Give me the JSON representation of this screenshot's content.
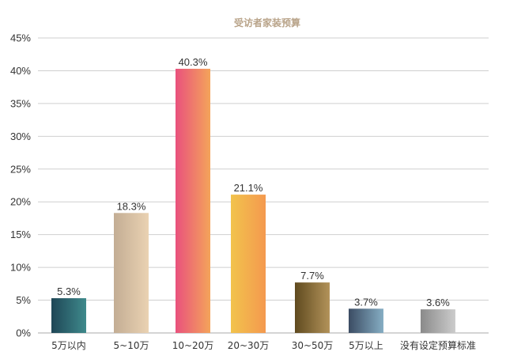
{
  "chart_data": {
    "type": "bar",
    "title": "受访者家装预算",
    "categories": [
      "5万以内",
      "5~10万",
      "10~20万",
      "20~30万",
      "30~50万",
      "5万以上",
      "没有设定预算标准"
    ],
    "values": [
      5.3,
      18.3,
      40.3,
      21.1,
      7.7,
      3.7,
      3.6
    ],
    "value_labels": [
      "5.3%",
      "18.3%",
      "40.3%",
      "21.1%",
      "7.7%",
      "3.7%",
      "3.6%"
    ],
    "yticks": [
      "0%",
      "5%",
      "10%",
      "15%",
      "20%",
      "25%",
      "30%",
      "35%",
      "40%",
      "45%"
    ],
    "ylim": [
      0,
      45
    ],
    "xlabel": "",
    "ylabel": "",
    "grid": true,
    "bar_colors": [
      [
        "#1e4656",
        "#3f8a8c"
      ],
      [
        "#c3ad94",
        "#ead2b2"
      ],
      [
        "#e9517d",
        "#f4a45a"
      ],
      [
        "#f2c34c",
        "#f4994f"
      ],
      [
        "#5f4a1f",
        "#b3935a"
      ],
      [
        "#3b4c63",
        "#86aec4"
      ],
      [
        "#8a8a8a",
        "#cccccc"
      ]
    ]
  }
}
